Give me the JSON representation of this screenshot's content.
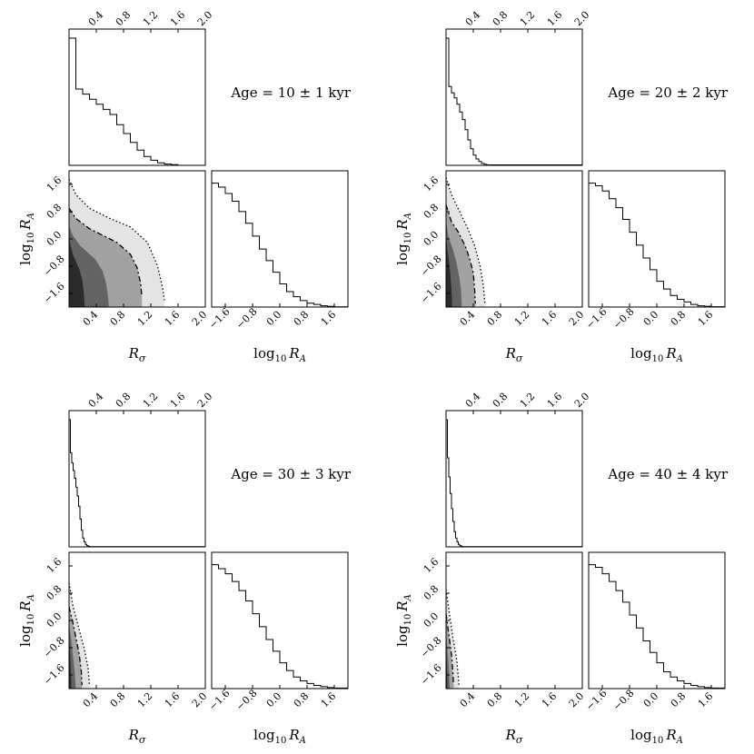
{
  "figure": {
    "x_label": "R_σ",
    "y_label": "log10 R_A",
    "age_prefix": "Age = ",
    "age_unit": "kyr",
    "r_sigma_ticks": [
      "0.4",
      "0.8",
      "1.2",
      "1.6",
      "2.0"
    ],
    "log_ra_ticks": [
      "−1.6",
      "−0.8",
      "0.0",
      "0.8",
      "1.6"
    ]
  },
  "chart_data": [
    {
      "type": "histogram",
      "panel": "age-10",
      "title": "Age = 10 ± 1 kyr",
      "age_kyr": 10,
      "age_err_kyr": 1,
      "r_sigma_hist": {
        "xlim": [
          0,
          2.0
        ],
        "bin_edges": [
          0.0,
          0.1,
          0.2,
          0.3,
          0.4,
          0.5,
          0.6,
          0.7,
          0.8,
          0.9,
          1.0,
          1.1,
          1.2,
          1.3,
          1.4,
          1.5,
          1.6,
          2.0
        ],
        "relative_density": [
          1.0,
          0.6,
          0.56,
          0.52,
          0.48,
          0.44,
          0.4,
          0.32,
          0.25,
          0.18,
          0.12,
          0.07,
          0.04,
          0.02,
          0.01,
          0.005,
          0.0
        ]
      },
      "log_ra_hist": {
        "xlim": [
          -2.0,
          2.0
        ],
        "bin_edges": [
          -2.0,
          -1.8,
          -1.6,
          -1.4,
          -1.2,
          -1.0,
          -0.8,
          -0.6,
          -0.4,
          -0.2,
          0.0,
          0.2,
          0.4,
          0.6,
          0.8,
          1.0,
          1.2,
          1.4,
          1.6,
          2.0
        ],
        "relative_density": [
          0.96,
          0.93,
          0.88,
          0.82,
          0.74,
          0.65,
          0.55,
          0.45,
          0.36,
          0.27,
          0.18,
          0.12,
          0.08,
          0.05,
          0.03,
          0.02,
          0.01,
          0.005,
          0.002
        ]
      },
      "joint": {
        "xlim": [
          0,
          2.0
        ],
        "ylim": [
          -2.0,
          2.0
        ],
        "contour_inner": [
          [
            0.0,
            0.9
          ],
          [
            0.1,
            0.6
          ],
          [
            0.3,
            0.3
          ],
          [
            0.5,
            0.1
          ],
          [
            0.7,
            -0.1
          ],
          [
            0.9,
            -0.45
          ],
          [
            1.0,
            -0.85
          ],
          [
            1.05,
            -1.3
          ],
          [
            1.07,
            -1.7
          ]
        ],
        "contour_outer": [
          [
            0.0,
            1.75
          ],
          [
            0.1,
            1.3
          ],
          [
            0.3,
            0.9
          ],
          [
            0.6,
            0.6
          ],
          [
            0.9,
            0.35
          ],
          [
            1.15,
            -0.1
          ],
          [
            1.3,
            -0.8
          ],
          [
            1.38,
            -1.5
          ],
          [
            1.4,
            -1.8
          ]
        ]
      }
    },
    {
      "type": "histogram",
      "panel": "age-20",
      "title": "Age = 20 ± 2 kyr",
      "age_kyr": 20,
      "age_err_kyr": 2,
      "r_sigma_hist": {
        "xlim": [
          0,
          2.0
        ],
        "bin_edges": [
          0.0,
          0.04,
          0.08,
          0.12,
          0.16,
          0.2,
          0.24,
          0.28,
          0.32,
          0.36,
          0.4,
          0.44,
          0.48,
          0.52,
          0.56,
          0.6,
          2.0
        ],
        "relative_density": [
          1.0,
          0.62,
          0.57,
          0.53,
          0.48,
          0.42,
          0.36,
          0.28,
          0.2,
          0.13,
          0.08,
          0.05,
          0.03,
          0.015,
          0.008,
          0.004
        ]
      },
      "log_ra_hist": {
        "xlim": [
          -2.0,
          2.0
        ],
        "bin_edges": [
          -2.0,
          -1.8,
          -1.6,
          -1.4,
          -1.2,
          -1.0,
          -0.8,
          -0.6,
          -0.4,
          -0.2,
          0.0,
          0.2,
          0.4,
          0.6,
          0.8,
          1.0,
          1.2,
          1.4,
          1.6,
          2.0
        ],
        "relative_density": [
          0.96,
          0.94,
          0.9,
          0.84,
          0.77,
          0.68,
          0.58,
          0.48,
          0.38,
          0.29,
          0.2,
          0.14,
          0.09,
          0.06,
          0.04,
          0.02,
          0.01,
          0.006,
          0.003
        ]
      },
      "joint": {
        "xlim": [
          0,
          2.0
        ],
        "ylim": [
          -2.0,
          2.0
        ],
        "contour_inner": [
          [
            0.0,
            1.0
          ],
          [
            0.08,
            0.5
          ],
          [
            0.18,
            0.2
          ],
          [
            0.28,
            -0.2
          ],
          [
            0.35,
            -0.6
          ],
          [
            0.4,
            -1.0
          ],
          [
            0.42,
            -1.5
          ],
          [
            0.43,
            -1.9
          ]
        ],
        "contour_outer": [
          [
            0.0,
            1.8
          ],
          [
            0.08,
            1.3
          ],
          [
            0.2,
            0.8
          ],
          [
            0.32,
            0.3
          ],
          [
            0.42,
            -0.2
          ],
          [
            0.5,
            -0.8
          ],
          [
            0.55,
            -1.4
          ],
          [
            0.57,
            -1.9
          ]
        ]
      }
    },
    {
      "type": "histogram",
      "panel": "age-30",
      "title": "Age = 30 ± 3 kyr",
      "age_kyr": 30,
      "age_err_kyr": 3,
      "r_sigma_hist": {
        "xlim": [
          0,
          2.0
        ],
        "bin_edges": [
          0.0,
          0.02,
          0.04,
          0.06,
          0.08,
          0.1,
          0.12,
          0.14,
          0.16,
          0.18,
          0.2,
          0.22,
          0.24,
          0.26,
          0.28,
          0.3,
          2.0
        ],
        "relative_density": [
          1.0,
          0.74,
          0.66,
          0.6,
          0.54,
          0.47,
          0.4,
          0.32,
          0.22,
          0.13,
          0.07,
          0.04,
          0.02,
          0.01,
          0.005,
          0.002
        ]
      },
      "log_ra_hist": {
        "xlim": [
          -2.0,
          2.0
        ],
        "bin_edges": [
          -2.0,
          -1.8,
          -1.6,
          -1.4,
          -1.2,
          -1.0,
          -0.8,
          -0.6,
          -0.4,
          -0.2,
          0.0,
          0.2,
          0.4,
          0.6,
          0.8,
          1.0,
          1.2,
          1.4,
          1.6,
          2.0
        ],
        "relative_density": [
          0.96,
          0.93,
          0.89,
          0.83,
          0.76,
          0.68,
          0.58,
          0.48,
          0.38,
          0.29,
          0.2,
          0.14,
          0.09,
          0.06,
          0.04,
          0.025,
          0.015,
          0.008,
          0.004
        ]
      },
      "joint": {
        "xlim": [
          0,
          2.0
        ],
        "ylim": [
          -2.0,
          2.0
        ],
        "contour_inner": [
          [
            0.0,
            0.4
          ],
          [
            0.05,
            0.0
          ],
          [
            0.1,
            -0.5
          ],
          [
            0.15,
            -1.0
          ],
          [
            0.18,
            -1.5
          ],
          [
            0.19,
            -1.9
          ]
        ],
        "contour_outer": [
          [
            0.0,
            1.1
          ],
          [
            0.06,
            0.4
          ],
          [
            0.14,
            -0.2
          ],
          [
            0.22,
            -0.8
          ],
          [
            0.28,
            -1.4
          ],
          [
            0.3,
            -1.9
          ]
        ]
      }
    },
    {
      "type": "histogram",
      "panel": "age-40",
      "title": "Age = 40 ± 4 kyr",
      "age_kyr": 40,
      "age_err_kyr": 4,
      "r_sigma_hist": {
        "xlim": [
          0,
          2.0
        ],
        "bin_edges": [
          0.0,
          0.02,
          0.04,
          0.06,
          0.08,
          0.1,
          0.12,
          0.14,
          0.16,
          0.18,
          0.2,
          0.22,
          0.24,
          2.0
        ],
        "relative_density": [
          1.0,
          0.7,
          0.55,
          0.42,
          0.3,
          0.2,
          0.12,
          0.07,
          0.04,
          0.02,
          0.01,
          0.005,
          0.002
        ]
      },
      "log_ra_hist": {
        "xlim": [
          -2.0,
          2.0
        ],
        "bin_edges": [
          -2.0,
          -1.8,
          -1.6,
          -1.4,
          -1.2,
          -1.0,
          -0.8,
          -0.6,
          -0.4,
          -0.2,
          0.0,
          0.2,
          0.4,
          0.6,
          0.8,
          1.0,
          1.2,
          1.4,
          1.6,
          2.0
        ],
        "relative_density": [
          0.96,
          0.94,
          0.89,
          0.83,
          0.76,
          0.67,
          0.57,
          0.47,
          0.37,
          0.28,
          0.2,
          0.13,
          0.09,
          0.06,
          0.04,
          0.025,
          0.015,
          0.008,
          0.004
        ]
      },
      "joint": {
        "xlim": [
          0,
          2.0
        ],
        "ylim": [
          -2.0,
          2.0
        ],
        "contour_inner": [
          [
            0.0,
            0.2
          ],
          [
            0.04,
            -0.4
          ],
          [
            0.08,
            -1.0
          ],
          [
            0.1,
            -1.5
          ],
          [
            0.11,
            -1.9
          ]
        ],
        "contour_outer": [
          [
            0.0,
            0.9
          ],
          [
            0.05,
            0.2
          ],
          [
            0.1,
            -0.5
          ],
          [
            0.16,
            -1.2
          ],
          [
            0.19,
            -1.9
          ]
        ]
      }
    }
  ]
}
